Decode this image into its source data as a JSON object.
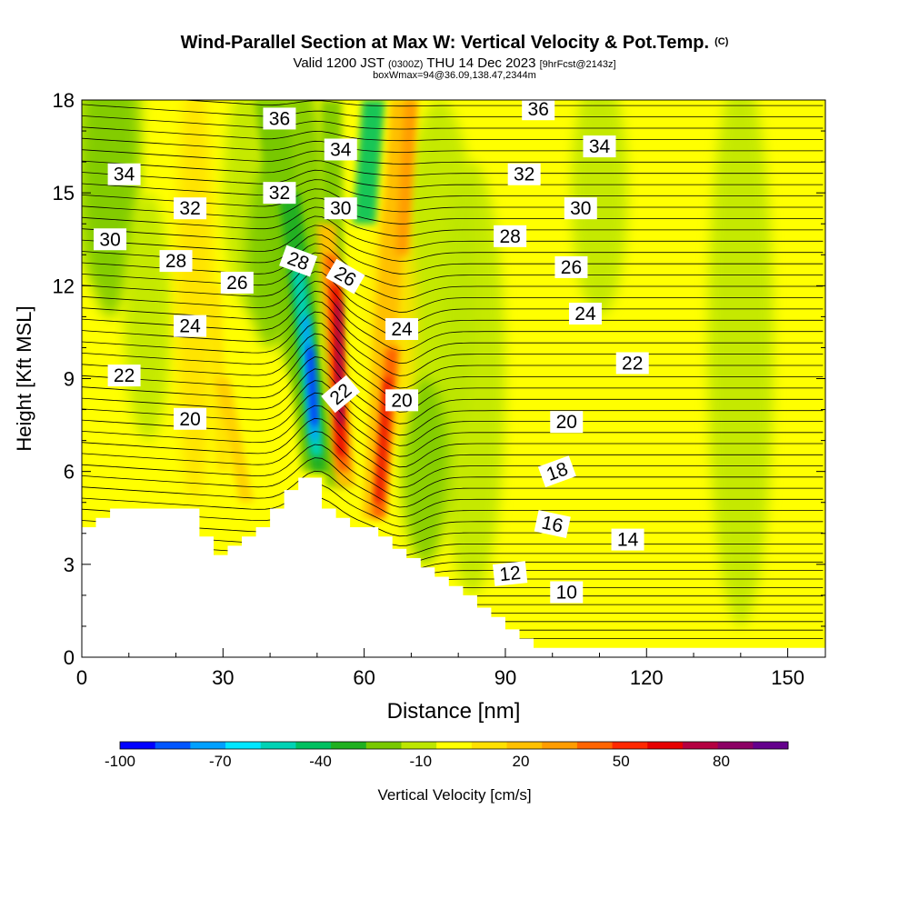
{
  "header": {
    "title_main": "Wind-Parallel Section at Max W: Vertical Velocity & Pot.Temp.",
    "title_copyright": "(C)",
    "subtitle_prefix": "Valid 1200 JST",
    "subtitle_utc": "(0300Z)",
    "subtitle_date": "THU 14 Dec 2023",
    "subtitle_fcst": "[9hrFcst@2143z]",
    "subtitle_box": "boxWmax=94@36.09,138.47,2344m"
  },
  "chart_data": {
    "type": "heatmap",
    "xlabel": "Distance [nm]",
    "ylabel": "Height [Kft MSL]",
    "xlim": [
      0,
      158
    ],
    "ylim": [
      0,
      18
    ],
    "x_ticks": [
      0,
      30,
      60,
      90,
      120,
      150
    ],
    "y_ticks": [
      0,
      3,
      6,
      9,
      12,
      15,
      18
    ],
    "colorbar": {
      "label": "Vertical Velocity [cm/s]",
      "range": [
        -100,
        100
      ],
      "tick_labels": [
        -100,
        -70,
        -40,
        -10,
        20,
        50,
        80
      ],
      "colors": [
        "#0000ff",
        "#0055ff",
        "#00a0ff",
        "#00e6ff",
        "#00d2b4",
        "#00c060",
        "#20b020",
        "#78c800",
        "#bce600",
        "#ffff00",
        "#ffe000",
        "#ffc000",
        "#ff9c00",
        "#ff6400",
        "#ff2800",
        "#e60000",
        "#b40040",
        "#8c0064",
        "#64008c"
      ]
    },
    "theta_contours": [
      {
        "value": 10,
        "label_at": [
          103,
          2.1
        ]
      },
      {
        "value": 12,
        "label_at": [
          91,
          2.7
        ]
      },
      {
        "value": 14,
        "label_at": [
          116,
          3.8
        ]
      },
      {
        "value": 16,
        "label_at": [
          100,
          4.3
        ]
      },
      {
        "value": 18,
        "label_at": [
          101,
          6.0
        ]
      },
      {
        "value": 20,
        "label_at": [
          23,
          7.7
        ],
        "label_at2": [
          68,
          8.3
        ],
        "label_at3": [
          103,
          7.6
        ]
      },
      {
        "value": 22,
        "label_at": [
          9,
          9.1
        ],
        "label_at2": [
          55,
          8.5
        ],
        "label_at3": [
          117,
          9.5
        ]
      },
      {
        "value": 24,
        "label_at": [
          23,
          10.7
        ],
        "label_at2": [
          68,
          10.6
        ],
        "label_at3": [
          107,
          11.1
        ]
      },
      {
        "value": 26,
        "label_at": [
          33,
          12.1
        ],
        "label_at2": [
          56,
          12.3
        ],
        "label_at3": [
          104,
          12.6
        ]
      },
      {
        "value": 28,
        "label_at": [
          20,
          12.8
        ],
        "label_at2": [
          46,
          12.8
        ],
        "label_at3": [
          91,
          13.6
        ]
      },
      {
        "value": 30,
        "label_at": [
          6,
          13.5
        ],
        "label_at2": [
          55,
          14.5
        ],
        "label_at3": [
          106,
          14.5
        ]
      },
      {
        "value": 32,
        "label_at": [
          23,
          14.5
        ],
        "label_at2": [
          42,
          15.0
        ],
        "label_at3": [
          94,
          15.6
        ]
      },
      {
        "value": 34,
        "label_at": [
          9,
          15.6
        ],
        "label_at2": [
          55,
          16.4
        ],
        "label_at3": [
          110,
          16.5
        ]
      },
      {
        "value": 36,
        "label_at": [
          42,
          17.4
        ],
        "label_at3": [
          97,
          17.7
        ]
      }
    ],
    "terrain": [
      [
        0,
        4.2
      ],
      [
        3,
        4.2
      ],
      [
        3,
        4.5
      ],
      [
        6,
        4.5
      ],
      [
        6,
        4.8
      ],
      [
        25,
        4.8
      ],
      [
        25,
        3.9
      ],
      [
        28,
        3.9
      ],
      [
        28,
        3.3
      ],
      [
        31,
        3.3
      ],
      [
        31,
        3.6
      ],
      [
        34,
        3.6
      ],
      [
        34,
        3.9
      ],
      [
        37,
        3.9
      ],
      [
        37,
        4.2
      ],
      [
        40,
        4.2
      ],
      [
        40,
        4.8
      ],
      [
        43,
        4.8
      ],
      [
        43,
        5.4
      ],
      [
        46,
        5.4
      ],
      [
        46,
        5.8
      ],
      [
        51,
        5.8
      ],
      [
        51,
        4.8
      ],
      [
        54,
        4.8
      ],
      [
        54,
        4.5
      ],
      [
        57,
        4.5
      ],
      [
        57,
        4.2
      ],
      [
        63,
        4.2
      ],
      [
        63,
        3.9
      ],
      [
        66,
        3.9
      ],
      [
        66,
        3.5
      ],
      [
        69,
        3.5
      ],
      [
        69,
        3.2
      ],
      [
        72,
        3.2
      ],
      [
        72,
        2.9
      ],
      [
        75,
        2.9
      ],
      [
        75,
        2.6
      ],
      [
        78,
        2.6
      ],
      [
        78,
        2.3
      ],
      [
        81,
        2.3
      ],
      [
        81,
        2.0
      ],
      [
        84,
        2.0
      ],
      [
        84,
        1.6
      ],
      [
        87,
        1.6
      ],
      [
        87,
        1.3
      ],
      [
        90,
        1.3
      ],
      [
        90,
        0.9
      ],
      [
        93,
        0.9
      ],
      [
        93,
        0.6
      ],
      [
        96,
        0.6
      ],
      [
        96,
        0.3
      ],
      [
        158,
        0.3
      ],
      [
        158,
        0
      ],
      [
        0,
        0
      ]
    ],
    "w_features": [
      {
        "name": "updraft-core",
        "x": 55,
        "y": 10.2,
        "peak": 94
      },
      {
        "name": "downdraft-core",
        "x": 49,
        "y": 9.5,
        "peak": -90
      },
      {
        "name": "downstream-updraft",
        "x": 67,
        "y": 7.0,
        "peak": 55
      },
      {
        "name": "upper-updraft",
        "x": 70,
        "y": 15.0,
        "peak": 40
      },
      {
        "name": "upper-downdraft",
        "x": 63,
        "y": 15.5,
        "peak": -45
      }
    ]
  }
}
